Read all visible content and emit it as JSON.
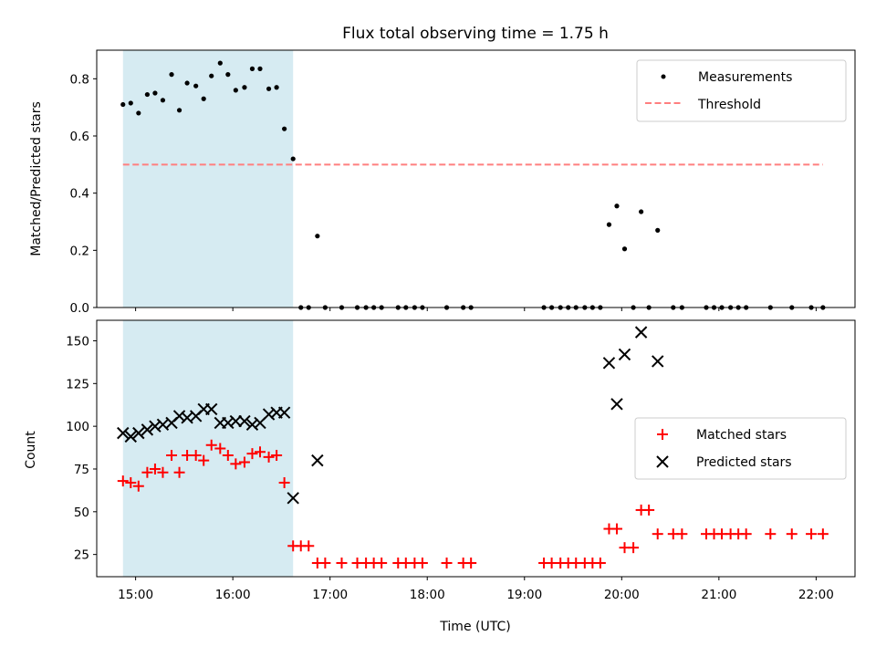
{
  "chart_data": [
    {
      "type": "scatter",
      "panel": "top",
      "title": "Flux total observing time = 1.75 h",
      "xlabel": "",
      "ylabel": "Matched/Predicted stars",
      "ylim": [
        0,
        0.9
      ],
      "yticks": [
        0.0,
        0.2,
        0.4,
        0.6,
        0.8
      ],
      "ytick_labels": [
        "0.0",
        "0.2",
        "0.4",
        "0.6",
        "0.8"
      ],
      "xlim_hours": [
        14.6,
        22.4
      ],
      "legend_position": "top-right",
      "shaded_span_hours": [
        14.87,
        16.62
      ],
      "shaded_color": "#add8e6",
      "threshold": {
        "name": "Threshold",
        "value": 0.5,
        "x_range_hours": [
          14.87,
          22.07
        ],
        "color": "#ff7f7f"
      },
      "series": [
        {
          "name": "Measurements",
          "color": "#000000",
          "marker": "dot",
          "x_hours": [
            14.87,
            14.95,
            15.03,
            15.12,
            15.2,
            15.28,
            15.37,
            15.45,
            15.53,
            15.62,
            15.7,
            15.78,
            15.87,
            15.95,
            16.03,
            16.12,
            16.2,
            16.28,
            16.37,
            16.45,
            16.53,
            16.62,
            16.7,
            16.78,
            16.87,
            16.95,
            17.12,
            17.28,
            17.37,
            17.45,
            17.53,
            17.7,
            17.78,
            17.87,
            17.95,
            18.2,
            18.37,
            18.45,
            19.2,
            19.28,
            19.37,
            19.45,
            19.53,
            19.62,
            19.7,
            19.78,
            19.87,
            19.95,
            20.03,
            20.12,
            20.2,
            20.28,
            20.37,
            20.53,
            20.62,
            20.87,
            20.95,
            21.03,
            21.12,
            21.2,
            21.28,
            21.53,
            21.75,
            21.95,
            22.07
          ],
          "y": [
            0.71,
            0.715,
            0.68,
            0.745,
            0.75,
            0.725,
            0.815,
            0.69,
            0.785,
            0.775,
            0.73,
            0.81,
            0.855,
            0.815,
            0.76,
            0.77,
            0.835,
            0.835,
            0.765,
            0.77,
            0.625,
            0.52,
            0,
            0,
            0.25,
            0,
            0,
            0,
            0,
            0,
            0,
            0,
            0,
            0,
            0,
            0,
            0,
            0,
            0,
            0,
            0,
            0,
            0,
            0,
            0,
            0,
            0.29,
            0.355,
            0.205,
            0,
            0.335,
            0,
            0.27,
            0,
            0,
            0,
            0,
            0,
            0,
            0,
            0,
            0,
            0,
            0,
            0
          ]
        }
      ]
    },
    {
      "type": "scatter",
      "panel": "bottom",
      "title": "",
      "xlabel": "Time (UTC)",
      "ylabel": "Count",
      "ylim": [
        12,
        162
      ],
      "yticks": [
        25,
        50,
        75,
        100,
        125,
        150
      ],
      "ytick_labels": [
        "25",
        "50",
        "75",
        "100",
        "125",
        "150"
      ],
      "xticks_hours": [
        15,
        16,
        17,
        18,
        19,
        20,
        21,
        22
      ],
      "xtick_labels": [
        "15:00",
        "16:00",
        "17:00",
        "18:00",
        "19:00",
        "20:00",
        "21:00",
        "22:00"
      ],
      "xlim_hours": [
        14.6,
        22.4
      ],
      "legend_position": "center-right",
      "shaded_span_hours": [
        14.87,
        16.62
      ],
      "shaded_color": "#add8e6",
      "series": [
        {
          "name": "Matched stars",
          "color": "#ff0000",
          "marker": "plus",
          "x_hours": [
            14.87,
            14.95,
            15.03,
            15.12,
            15.2,
            15.28,
            15.37,
            15.45,
            15.53,
            15.62,
            15.7,
            15.78,
            15.87,
            15.95,
            16.03,
            16.12,
            16.2,
            16.28,
            16.37,
            16.45,
            16.53,
            16.62,
            16.7,
            16.78,
            16.87,
            16.95,
            17.12,
            17.28,
            17.37,
            17.45,
            17.53,
            17.7,
            17.78,
            17.87,
            17.95,
            18.2,
            18.37,
            18.45,
            19.2,
            19.28,
            19.37,
            19.45,
            19.53,
            19.62,
            19.7,
            19.78,
            19.87,
            19.95,
            20.03,
            20.12,
            20.2,
            20.28,
            20.37,
            20.53,
            20.62,
            20.87,
            20.95,
            21.03,
            21.12,
            21.2,
            21.28,
            21.53,
            21.75,
            21.95,
            22.07
          ],
          "y": [
            68,
            67,
            65,
            73,
            75,
            73,
            83,
            73,
            83,
            83,
            80,
            89,
            87,
            83,
            78,
            79,
            84,
            85,
            82,
            83,
            67,
            30,
            30,
            30,
            20,
            20,
            20,
            20,
            20,
            20,
            20,
            20,
            20,
            20,
            20,
            20,
            20,
            20,
            20,
            20,
            20,
            20,
            20,
            20,
            20,
            20,
            40,
            40,
            29,
            29,
            51,
            51,
            37,
            37,
            37,
            37,
            37,
            37,
            37,
            37,
            37,
            37,
            37,
            37,
            37
          ]
        },
        {
          "name": "Predicted stars",
          "color": "#000000",
          "marker": "cross",
          "x_hours": [
            14.87,
            14.95,
            15.03,
            15.12,
            15.2,
            15.28,
            15.37,
            15.45,
            15.53,
            15.62,
            15.7,
            15.78,
            15.87,
            15.95,
            16.03,
            16.12,
            16.2,
            16.28,
            16.37,
            16.45,
            16.53,
            16.62,
            16.87,
            19.87,
            19.95,
            20.03,
            20.2,
            20.37
          ],
          "y": [
            96,
            94,
            96,
            98,
            100,
            101,
            102,
            106,
            105,
            106,
            110,
            110,
            102,
            102,
            103,
            103,
            101,
            102,
            107,
            108,
            108,
            58,
            80,
            137,
            113,
            142,
            155,
            138
          ]
        }
      ]
    }
  ]
}
